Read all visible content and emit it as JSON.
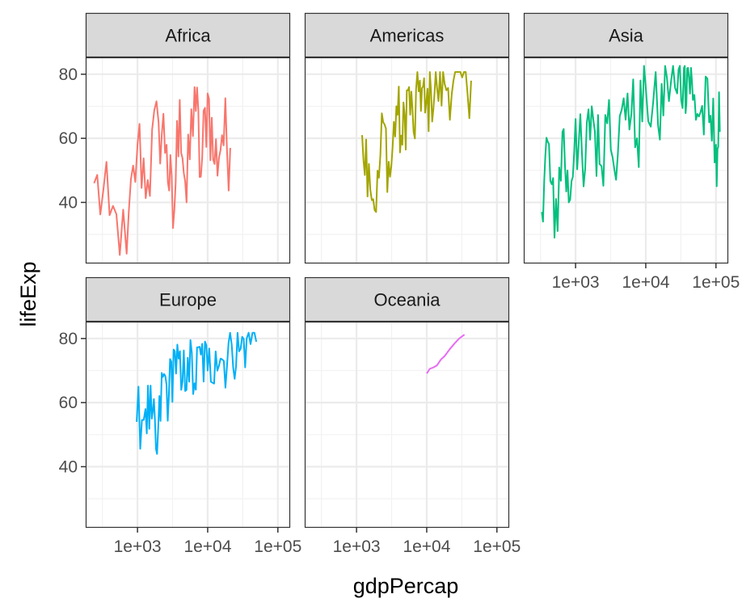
{
  "chart_data": {
    "type": "line",
    "xlabel": "gdpPercap",
    "ylabel": "lifeExp",
    "x_scale": "log10",
    "xlim": [
      241,
      113523
    ],
    "ylim": [
      23.6,
      82.6
    ],
    "x_ticks": [
      1000,
      10000,
      100000
    ],
    "x_tick_labels": [
      "1e+03",
      "1e+04",
      "1e+05"
    ],
    "y_ticks": [
      40,
      60,
      80
    ],
    "y_tick_labels": [
      "40",
      "60",
      "80"
    ],
    "grid": true,
    "legend": "none",
    "facets": [
      {
        "name": "Africa",
        "color": "#F8766D",
        "x": [
          241,
          400,
          700,
          1000,
          1400,
          2000,
          2600,
          3200,
          4000,
          5000,
          6500,
          8000,
          10000,
          12500,
          16000,
          21000
        ],
        "y": [
          46,
          36,
          24,
          58,
          47,
          65,
          58,
          32,
          72,
          40,
          76,
          48,
          74,
          52,
          61,
          57
        ],
        "x_range": [
          241,
          21951
        ],
        "y_range": [
          23.6,
          76.4
        ]
      },
      {
        "name": "Americas",
        "color": "#A3A500",
        "x": [
          1201,
          1500,
          1900,
          2400,
          3000,
          3700,
          4500,
          5400,
          6500,
          8000,
          9500,
          11500,
          14000,
          18000,
          24000,
          32000,
          42952
        ],
        "y": [
          61,
          52,
          37,
          65,
          48,
          70,
          58,
          75,
          62,
          78,
          68,
          75,
          76,
          77,
          78,
          79,
          78
        ],
        "x_range": [
          1201,
          42952
        ],
        "y_range": [
          37.6,
          80.7
        ]
      },
      {
        "name": "Asia",
        "color": "#00BF7D",
        "x": [
          331,
          400,
          500,
          650,
          800,
          1000,
          1300,
          1700,
          2200,
          3000,
          4000,
          5500,
          7500,
          10000,
          15000,
          20000,
          28000,
          35000,
          40000,
          47000,
          60000,
          80000,
          100000,
          113523
        ],
        "y": [
          37,
          59,
          29,
          62,
          40,
          66,
          45,
          70,
          52,
          72,
          55,
          74,
          60,
          76,
          64,
          79,
          74,
          82,
          82,
          72,
          68,
          65,
          58,
          62
        ],
        "x_range": [
          331,
          113523
        ],
        "y_range": [
          28.8,
          82.6
        ]
      },
      {
        "name": "Europe",
        "color": "#00B0F6",
        "x": [
          974,
          1300,
          1600,
          1900,
          2300,
          2800,
          3400,
          4200,
          5200,
          6500,
          8000,
          10000,
          13000,
          17000,
          22000,
          28000,
          36000,
          49357
        ],
        "y": [
          54,
          58,
          55,
          44,
          68,
          62,
          76,
          64,
          74,
          66,
          75,
          70,
          76,
          73,
          78,
          76,
          80,
          79
        ],
        "x_range": [
          974,
          49357
        ],
        "y_range": [
          43.6,
          81.8
        ]
      },
      {
        "name": "Oceania",
        "color": "#E76BF3",
        "x": [
          10040,
          11000,
          12500,
          14000,
          16000,
          18000,
          21000,
          25000,
          29000,
          34435
        ],
        "y": [
          69.1,
          70.5,
          71.0,
          71.6,
          73.5,
          74.5,
          76.5,
          78.5,
          80.0,
          81.2
        ],
        "x_range": [
          10040,
          34435
        ],
        "y_range": [
          69.1,
          81.2
        ]
      }
    ]
  }
}
